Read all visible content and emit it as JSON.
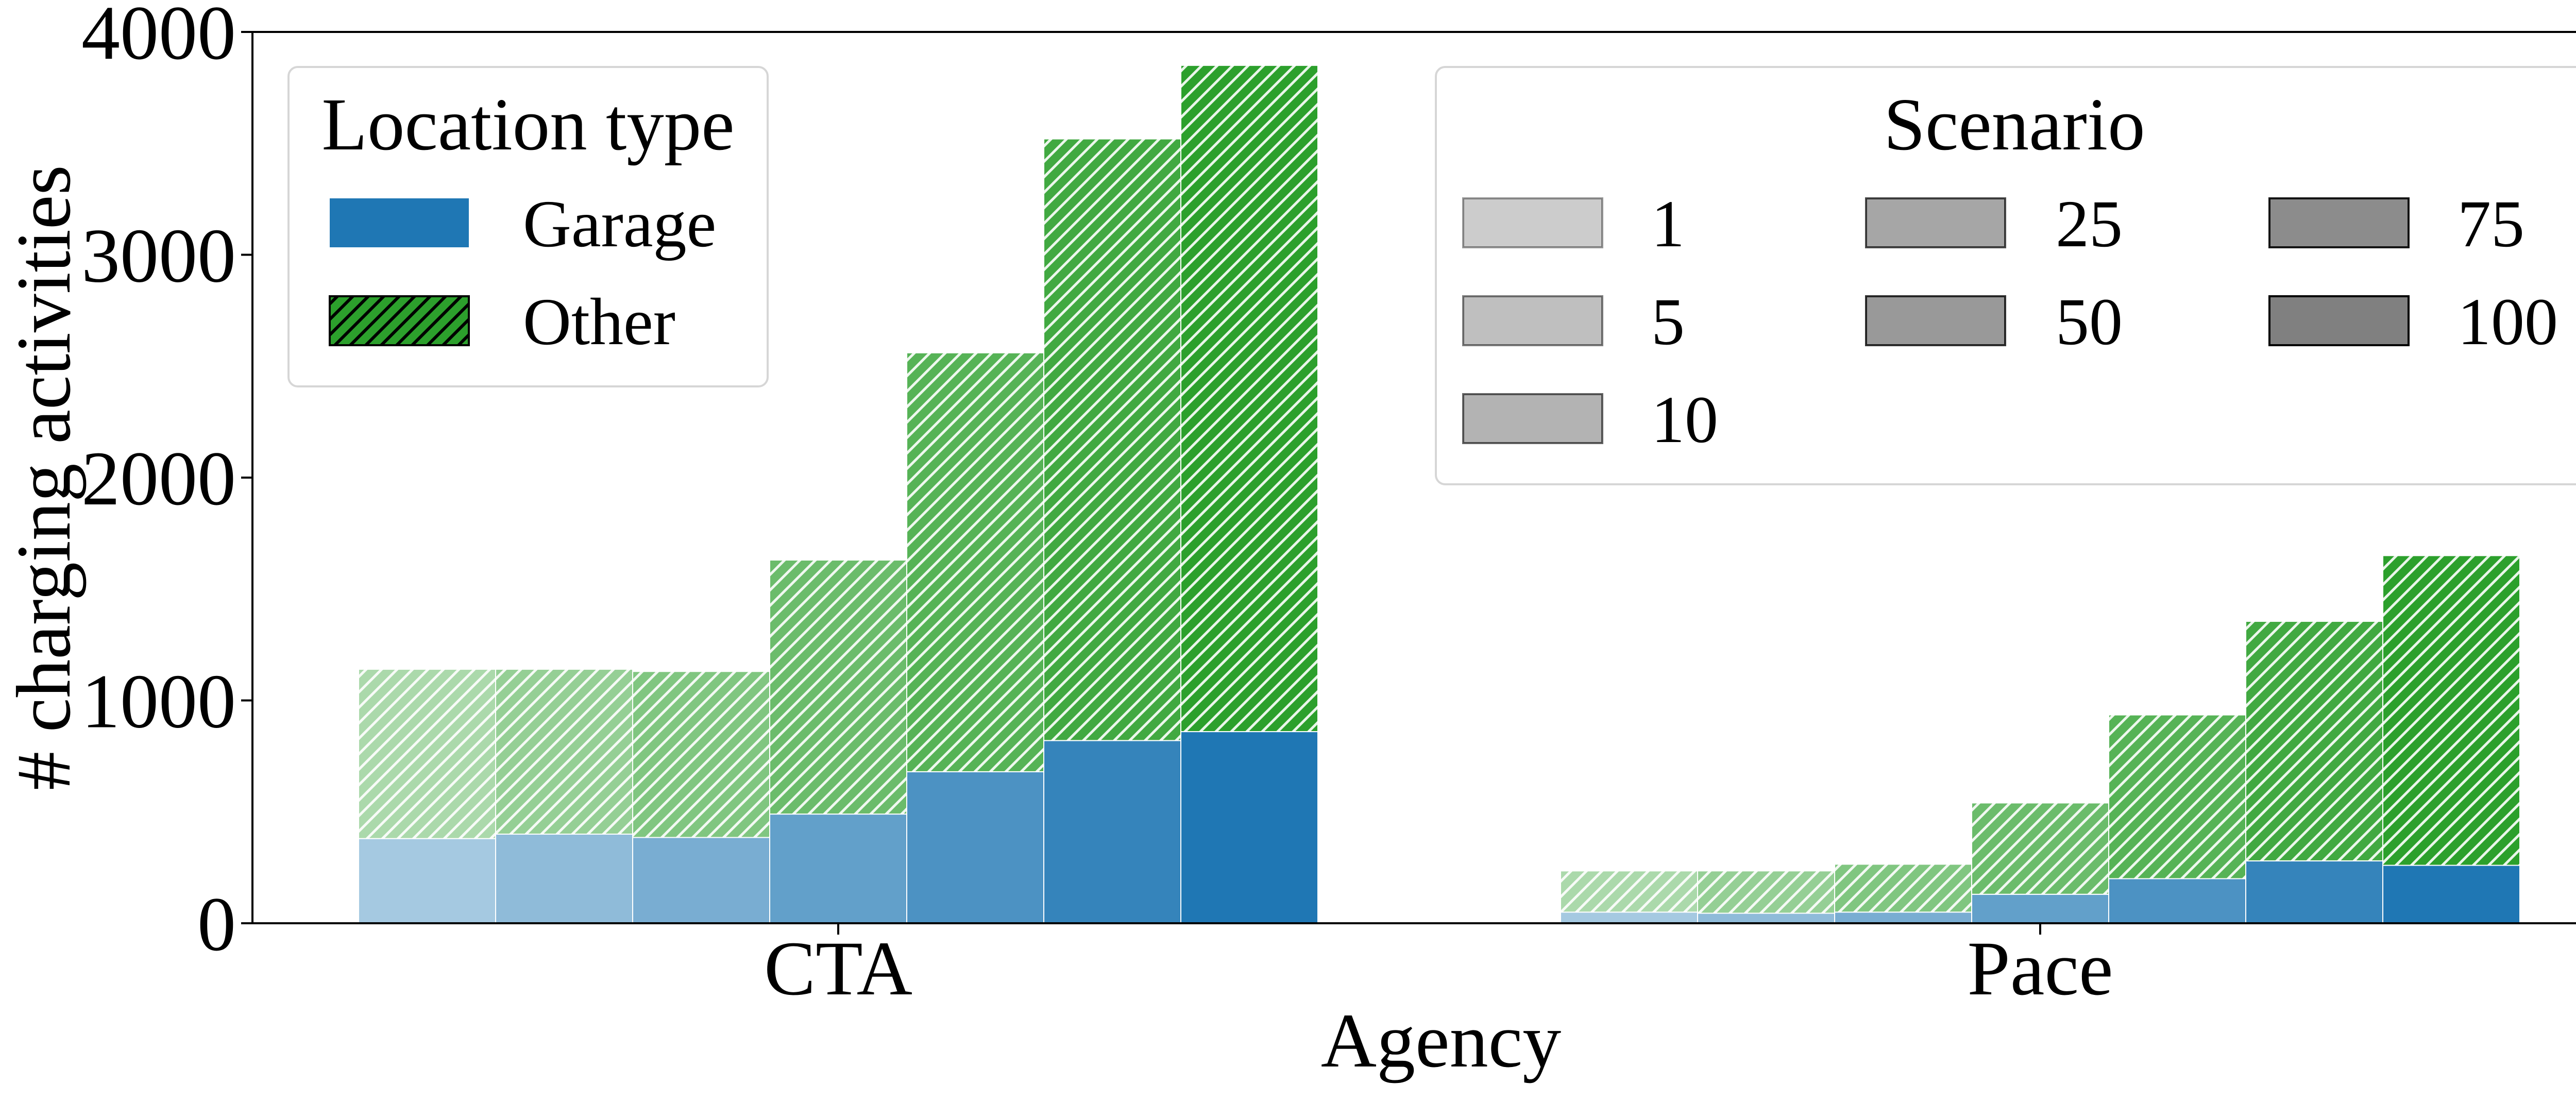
{
  "chart_data": {
    "type": "bar",
    "stacked": true,
    "xlabel": "Agency",
    "ylabel": "# charging activities",
    "ylim": [
      0,
      4000
    ],
    "yticks": [
      0,
      1000,
      2000,
      3000,
      4000
    ],
    "yticklabels": [
      "0",
      "1000",
      "2000",
      "3000",
      "4000"
    ],
    "categories": [
      "CTA",
      "Pace"
    ],
    "scenarios": [
      "1",
      "5",
      "10",
      "25",
      "50",
      "75",
      "100"
    ],
    "stack_components": [
      {
        "key": "garage",
        "label": "Garage",
        "color": "#1f77b4",
        "hatch": false
      },
      {
        "key": "other",
        "label": "Other",
        "color": "#2ca02c",
        "hatch": true
      }
    ],
    "scenario_alphas": [
      0.4,
      0.5,
      0.6,
      0.7,
      0.8,
      0.9,
      1.0
    ],
    "data": {
      "CTA": {
        "garage": [
          380,
          400,
          385,
          490,
          680,
          820,
          860
        ],
        "total": [
          1140,
          1140,
          1130,
          1630,
          2560,
          3520,
          3850
        ]
      },
      "Pace": {
        "garage": [
          50,
          45,
          50,
          130,
          200,
          280,
          260
        ],
        "total": [
          235,
          235,
          265,
          540,
          935,
          1355,
          1650
        ]
      }
    },
    "legends": {
      "location": {
        "title": "Location type",
        "entries": [
          "Garage",
          "Other"
        ],
        "placement": "top-left"
      },
      "scenario": {
        "title": "Scenario",
        "entries": [
          "1",
          "5",
          "10",
          "25",
          "50",
          "75",
          "100"
        ],
        "ncol": 3,
        "placement": "top-right"
      }
    }
  }
}
